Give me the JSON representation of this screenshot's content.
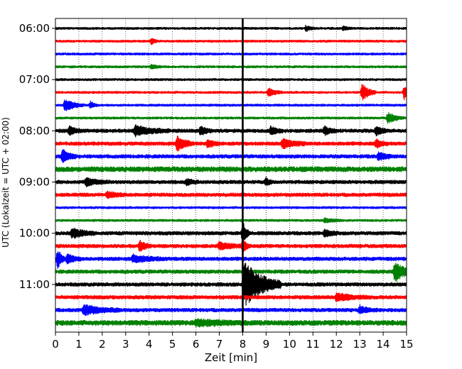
{
  "chart_data": {
    "type": "line",
    "title": "",
    "xlabel": "Zeit  [min]",
    "ylabel": "UTC (Lokalzeit = UTC + 02:00)",
    "xlim": [
      0,
      15
    ],
    "x_ticks": [
      "0",
      "1",
      "2",
      "3",
      "4",
      "5",
      "6",
      "7",
      "8",
      "9",
      "10",
      "11",
      "12",
      "13",
      "14",
      "15"
    ],
    "y_tick_labels": [
      "06:00",
      "07:00",
      "08:00",
      "09:00",
      "10:00",
      "11:00"
    ],
    "y_tick_trace_index": [
      0,
      4,
      8,
      12,
      16,
      20
    ],
    "grid": "vertical dotted at each minute",
    "trace_interval_minutes": 15,
    "start_time": "06:00",
    "colors": [
      "#000000",
      "#ff0000",
      "#0000ff",
      "#008000"
    ],
    "traces": [
      {
        "time": "06:00",
        "color": "#000000",
        "amplitude": 2,
        "events": [
          {
            "t": 10.7,
            "amp": 4,
            "dur": 0.4
          },
          {
            "t": 12.3,
            "amp": 3,
            "dur": 0.4
          }
        ]
      },
      {
        "time": "06:15",
        "color": "#ff0000",
        "amplitude": 2,
        "events": [
          {
            "t": 4.1,
            "amp": 5,
            "dur": 0.3
          }
        ]
      },
      {
        "time": "06:30",
        "color": "#0000ff",
        "amplitude": 2,
        "events": []
      },
      {
        "time": "06:45",
        "color": "#008000",
        "amplitude": 2,
        "events": [
          {
            "t": 4.1,
            "amp": 3,
            "dur": 0.5
          }
        ]
      },
      {
        "time": "07:00",
        "color": "#000000",
        "amplitude": 2,
        "events": []
      },
      {
        "time": "07:15",
        "color": "#ff0000",
        "amplitude": 2,
        "events": [
          {
            "t": 9.1,
            "amp": 6,
            "dur": 0.6
          },
          {
            "t": 13.1,
            "amp": 12,
            "dur": 0.6
          },
          {
            "t": 14.9,
            "amp": 10,
            "dur": 0.3
          }
        ]
      },
      {
        "time": "07:30",
        "color": "#0000ff",
        "amplitude": 2,
        "events": [
          {
            "t": 0.4,
            "amp": 9,
            "dur": 0.8
          },
          {
            "t": 1.5,
            "amp": 5,
            "dur": 0.3
          }
        ]
      },
      {
        "time": "07:45",
        "color": "#008000",
        "amplitude": 2,
        "events": [
          {
            "t": 14.2,
            "amp": 8,
            "dur": 0.7
          }
        ]
      },
      {
        "time": "08:00",
        "color": "#000000",
        "amplitude": 3,
        "events": [
          {
            "t": 0.6,
            "amp": 6,
            "dur": 0.5
          },
          {
            "t": 3.4,
            "amp": 7,
            "dur": 1.5
          },
          {
            "t": 6.2,
            "amp": 6,
            "dur": 0.5
          },
          {
            "t": 9.2,
            "amp": 6,
            "dur": 0.5
          },
          {
            "t": 11.5,
            "amp": 6,
            "dur": 0.5
          },
          {
            "t": 13.7,
            "amp": 6,
            "dur": 0.5
          }
        ]
      },
      {
        "time": "08:15",
        "color": "#ff0000",
        "amplitude": 3,
        "events": [
          {
            "t": 5.2,
            "amp": 11,
            "dur": 0.7
          },
          {
            "t": 6.5,
            "amp": 6,
            "dur": 0.5
          },
          {
            "t": 9.7,
            "amp": 7,
            "dur": 1.0
          },
          {
            "t": 13.7,
            "amp": 6,
            "dur": 0.5
          }
        ]
      },
      {
        "time": "08:30",
        "color": "#0000ff",
        "amplitude": 3,
        "events": [
          {
            "t": 0.3,
            "amp": 9,
            "dur": 0.6
          },
          {
            "t": 13.8,
            "amp": 6,
            "dur": 0.6
          }
        ]
      },
      {
        "time": "08:45",
        "color": "#008000",
        "amplitude": 4,
        "events": []
      },
      {
        "time": "09:00",
        "color": "#000000",
        "amplitude": 3,
        "events": [
          {
            "t": 1.3,
            "amp": 5,
            "dur": 1.0
          },
          {
            "t": 5.6,
            "amp": 4,
            "dur": 0.5
          },
          {
            "t": 9.0,
            "amp": 5,
            "dur": 0.3
          }
        ]
      },
      {
        "time": "09:15",
        "color": "#ff0000",
        "amplitude": 3,
        "events": [
          {
            "t": 2.2,
            "amp": 4,
            "dur": 0.8
          }
        ]
      },
      {
        "time": "09:30",
        "color": "#0000ff",
        "amplitude": 2,
        "events": []
      },
      {
        "time": "09:45",
        "color": "#008000",
        "amplitude": 2,
        "events": [
          {
            "t": 11.5,
            "amp": 3,
            "dur": 0.8
          }
        ]
      },
      {
        "time": "10:00",
        "color": "#000000",
        "amplitude": 3,
        "events": [
          {
            "t": 0.7,
            "amp": 7,
            "dur": 1.0
          },
          {
            "t": 8.0,
            "amp": 18,
            "dur": 0.3
          },
          {
            "t": 11.5,
            "amp": 5,
            "dur": 0.6
          }
        ]
      },
      {
        "time": "10:15",
        "color": "#ff0000",
        "amplitude": 3,
        "events": [
          {
            "t": 3.6,
            "amp": 8,
            "dur": 0.5
          },
          {
            "t": 7.0,
            "amp": 5,
            "dur": 1.0
          },
          {
            "t": 8.0,
            "amp": 10,
            "dur": 0.3
          }
        ]
      },
      {
        "time": "10:30",
        "color": "#0000ff",
        "amplitude": 3,
        "events": [
          {
            "t": 0.1,
            "amp": 14,
            "dur": 0.3
          },
          {
            "t": 0.5,
            "amp": 7,
            "dur": 0.6
          },
          {
            "t": 3.3,
            "amp": 5,
            "dur": 1.5
          }
        ]
      },
      {
        "time": "10:45",
        "color": "#008000",
        "amplitude": 3,
        "events": [
          {
            "t": 14.5,
            "amp": 15,
            "dur": 0.8
          }
        ]
      },
      {
        "time": "11:00",
        "color": "#000000",
        "amplitude": 3,
        "events": [
          {
            "t": 8.05,
            "amp": 34,
            "dur": 1.6
          }
        ]
      },
      {
        "time": "11:15",
        "color": "#ff0000",
        "amplitude": 3,
        "events": [
          {
            "t": 12.0,
            "amp": 5,
            "dur": 1.5
          }
        ]
      },
      {
        "time": "11:30",
        "color": "#0000ff",
        "amplitude": 3,
        "events": [
          {
            "t": 1.2,
            "amp": 7,
            "dur": 1.6
          },
          {
            "t": 13.0,
            "amp": 5,
            "dur": 0.8
          }
        ]
      },
      {
        "time": "11:45",
        "color": "#008000",
        "amplitude": 4,
        "events": [
          {
            "t": 6.0,
            "amp": 4,
            "dur": 2.0
          }
        ]
      }
    ],
    "annotations": [
      {
        "type": "vertical-line",
        "x": 8.0,
        "color": "#000000",
        "label": ""
      }
    ]
  }
}
